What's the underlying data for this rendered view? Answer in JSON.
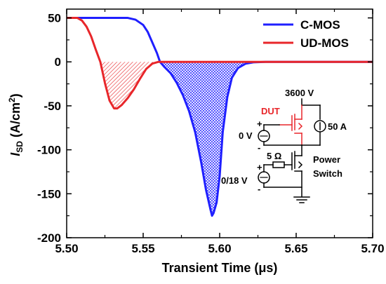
{
  "chart_data": {
    "type": "line",
    "xlabel": "Transient Time (μs)",
    "ylabel_main": "I",
    "ylabel_sub": "SD",
    "ylabel_unit": " (A/cm",
    "ylabel_sup": "2",
    "ylabel_close": ")",
    "xlim": [
      5.5,
      5.7
    ],
    "ylim": [
      -200,
      60
    ],
    "xticks": [
      5.5,
      5.55,
      5.6,
      5.65,
      5.7
    ],
    "xtick_labels": [
      "5.50",
      "5.55",
      "5.60",
      "5.65",
      "5.70"
    ],
    "yticks": [
      50,
      0,
      -50,
      -100,
      -150,
      -200
    ],
    "ytick_labels": [
      "50",
      "0",
      "-50",
      "-100",
      "-150",
      "-200"
    ],
    "grid": false,
    "legend_position": "top-right",
    "series": [
      {
        "name": "C-MOS",
        "color": "#1f1fff",
        "fill": "cross-hatch",
        "x": [
          5.5,
          5.54,
          5.545,
          5.55,
          5.553,
          5.556,
          5.559,
          5.561,
          5.564,
          5.568,
          5.572,
          5.576,
          5.58,
          5.584,
          5.588,
          5.591,
          5.594,
          5.595,
          5.596,
          5.598,
          5.6,
          5.602,
          5.605,
          5.608,
          5.612,
          5.617,
          5.622,
          5.63,
          5.7
        ],
        "y": [
          50,
          50,
          48,
          42,
          34,
          22,
          10,
          0,
          -6,
          -13,
          -24,
          -38,
          -56,
          -80,
          -115,
          -145,
          -168,
          -175,
          -172,
          -160,
          -130,
          -80,
          -40,
          -18,
          -7,
          -2,
          -0.5,
          0,
          0
        ]
      },
      {
        "name": "UD-MOS",
        "color": "#e8262a",
        "fill": "diagonal-hatch",
        "x": [
          5.5,
          5.507,
          5.51,
          5.513,
          5.516,
          5.519,
          5.522,
          5.525,
          5.528,
          5.531,
          5.533,
          5.536,
          5.54,
          5.544,
          5.548,
          5.552,
          5.556,
          5.56,
          5.563,
          5.7
        ],
        "y": [
          50,
          50,
          47,
          40,
          29,
          14,
          0,
          -24,
          -44,
          -53,
          -53,
          -49,
          -41,
          -31,
          -19,
          -8,
          -2,
          0,
          0,
          0
        ]
      }
    ],
    "inset": {
      "dut_label": "DUT",
      "vdd_label": "3600 V",
      "gate_label": "0 V",
      "current_label": "50 A",
      "resistor_label": "5 Ω",
      "driver_label": "0/18 V",
      "switch_label_1": "Power",
      "switch_label_2": "Switch",
      "plus_1": "+",
      "minus_1": "-",
      "plus_2": "+",
      "minus_2": "-"
    }
  }
}
